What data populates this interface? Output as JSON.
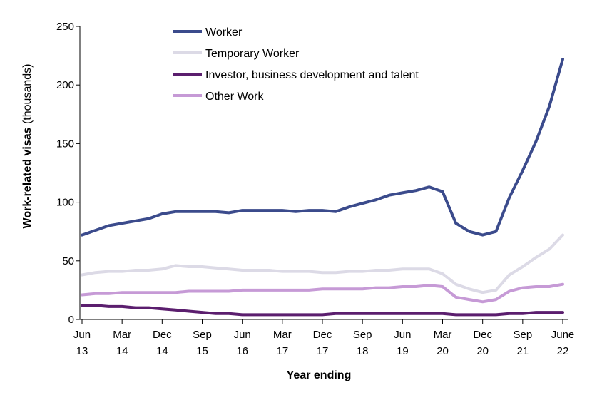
{
  "chart_data": {
    "type": "line",
    "title": "",
    "xlabel": "Year ending",
    "ylabel_bold": "Work-related visas",
    "ylabel_rest": " (thousands)",
    "ylim": [
      0,
      250
    ],
    "yticks": [
      "0",
      "50",
      "100",
      "150",
      "200",
      "250"
    ],
    "xtick_labels": [
      [
        "Jun",
        "13"
      ],
      [
        "Mar",
        "14"
      ],
      [
        "Dec",
        "14"
      ],
      [
        "Sep",
        "15"
      ],
      [
        "Jun",
        "16"
      ],
      [
        "Mar",
        "17"
      ],
      [
        "Dec",
        "17"
      ],
      [
        "Sep",
        "18"
      ],
      [
        "Jun",
        "19"
      ],
      [
        "Mar",
        "20"
      ],
      [
        "Dec",
        "20"
      ],
      [
        "Sep",
        "21"
      ],
      [
        "June",
        "22"
      ]
    ],
    "quarters_per_label": 3,
    "grid": false,
    "legend_position": "top-left",
    "series": [
      {
        "name": "Worker",
        "color": "#3b4b8c",
        "values": [
          72,
          76,
          80,
          82,
          84,
          86,
          90,
          92,
          92,
          92,
          92,
          91,
          93,
          93,
          93,
          93,
          92,
          93,
          93,
          92,
          96,
          99,
          102,
          106,
          108,
          110,
          113,
          109,
          82,
          75,
          72,
          75,
          104,
          127,
          152,
          182,
          222
        ]
      },
      {
        "name": "Temporary Worker",
        "color": "#dcdae6",
        "values": [
          38,
          40,
          41,
          41,
          42,
          42,
          43,
          46,
          45,
          45,
          44,
          43,
          42,
          42,
          42,
          41,
          41,
          41,
          40,
          40,
          41,
          41,
          42,
          42,
          43,
          43,
          43,
          39,
          30,
          26,
          23,
          25,
          38,
          45,
          53,
          60,
          72
        ]
      },
      {
        "name": "Investor, business development and talent",
        "color": "#5b1e6e",
        "values": [
          12,
          12,
          11,
          11,
          10,
          10,
          9,
          8,
          7,
          6,
          5,
          5,
          4,
          4,
          4,
          4,
          4,
          4,
          4,
          5,
          5,
          5,
          5,
          5,
          5,
          5,
          5,
          5,
          4,
          4,
          4,
          4,
          5,
          5,
          6,
          6,
          6
        ]
      },
      {
        "name": "Other Work",
        "color": "#c69ad6",
        "values": [
          21,
          22,
          22,
          23,
          23,
          23,
          23,
          23,
          24,
          24,
          24,
          24,
          25,
          25,
          25,
          25,
          25,
          25,
          26,
          26,
          26,
          26,
          27,
          27,
          28,
          28,
          29,
          28,
          19,
          17,
          15,
          17,
          24,
          27,
          28,
          28,
          30
        ]
      }
    ]
  }
}
